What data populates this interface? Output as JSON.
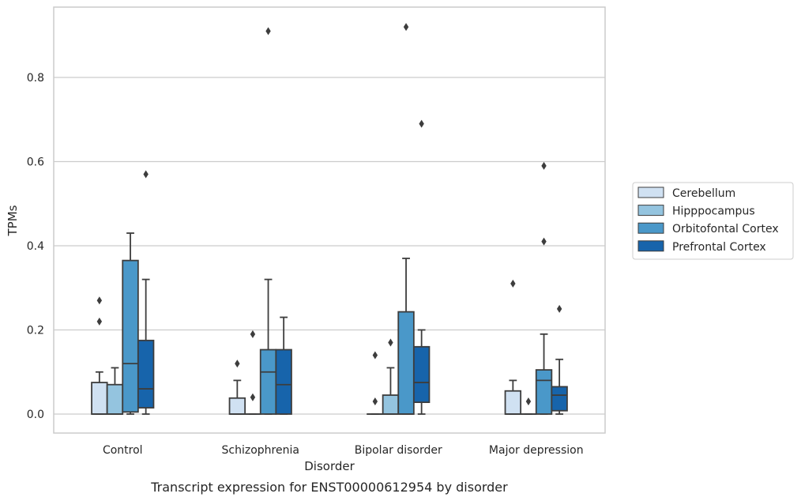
{
  "chart_data": {
    "type": "box",
    "caption": "Transcript expression for ENST00000612954 by disorder",
    "xlabel": "Disorder",
    "ylabel": "TPMs",
    "ylim": [
      -0.045,
      0.97
    ],
    "yticks": [
      0.0,
      0.2,
      0.4,
      0.6,
      0.8
    ],
    "ytick_labels": [
      "0.0",
      "0.2",
      "0.4",
      "0.6",
      "0.8"
    ],
    "grid": "horizontal",
    "legend_position": "right",
    "categories": [
      "Control",
      "Schizophrenia",
      "Bipolar disorder",
      "Major depression"
    ],
    "series": [
      {
        "name": "Cerebellum",
        "color": "#d0e1f2",
        "boxes": [
          {
            "whislo": 0.0,
            "q1": 0.0,
            "med": 0.0,
            "q3": 0.075,
            "whishi": 0.1,
            "fliers": [
              0.22,
              0.27
            ]
          },
          {
            "whislo": 0.0,
            "q1": 0.0,
            "med": 0.0,
            "q3": 0.038,
            "whishi": 0.08,
            "fliers": [
              0.12
            ]
          },
          {
            "whislo": 0.0,
            "q1": 0.0,
            "med": 0.0,
            "q3": 0.0,
            "whishi": 0.0,
            "fliers": []
          },
          {
            "whislo": 0.0,
            "q1": 0.0,
            "med": 0.0,
            "q3": 0.055,
            "whishi": 0.08,
            "fliers": [
              0.31
            ]
          }
        ]
      },
      {
        "name": "Hipppocampus",
        "color": "#94c4df",
        "boxes": [
          {
            "whislo": 0.0,
            "q1": 0.0,
            "med": 0.0,
            "q3": 0.07,
            "whishi": 0.11,
            "fliers": []
          },
          {
            "whislo": 0.0,
            "q1": 0.0,
            "med": 0.0,
            "q3": 0.0,
            "whishi": 0.0,
            "fliers": [
              0.04,
              0.19
            ]
          },
          {
            "whislo": 0.0,
            "q1": 0.0,
            "med": 0.0,
            "q3": 0.045,
            "whishi": 0.11,
            "fliers": [
              0.17
            ]
          },
          {
            "whislo": 0.0,
            "q1": 0.0,
            "med": 0.0,
            "q3": 0.0,
            "whishi": 0.0,
            "fliers": [
              0.03
            ]
          }
        ]
      },
      {
        "name": "Orbitofontal Cortex",
        "color": "#4a98c9",
        "boxes": [
          {
            "whislo": 0.0,
            "q1": 0.005,
            "med": 0.12,
            "q3": 0.365,
            "whishi": 0.43,
            "fliers": []
          },
          {
            "whislo": 0.0,
            "q1": 0.0,
            "med": 0.1,
            "q3": 0.153,
            "whishi": 0.32,
            "fliers": [
              0.91
            ]
          },
          {
            "whislo": 0.0,
            "q1": 0.0,
            "med": 0.0,
            "q3": 0.243,
            "whishi": 0.37,
            "fliers": [
              0.92
            ]
          },
          {
            "whislo": 0.0,
            "q1": 0.0,
            "med": 0.08,
            "q3": 0.105,
            "whishi": 0.19,
            "fliers": [
              0.41,
              0.59
            ]
          }
        ]
      },
      {
        "name": "Prefrontal Cortex",
        "color": "#1764ab",
        "boxes": [
          {
            "whislo": 0.0,
            "q1": 0.015,
            "med": 0.06,
            "q3": 0.175,
            "whishi": 0.32,
            "fliers": [
              0.57
            ]
          },
          {
            "whislo": 0.0,
            "q1": 0.0,
            "med": 0.07,
            "q3": 0.153,
            "whishi": 0.23,
            "fliers": []
          },
          {
            "whislo": 0.0,
            "q1": 0.028,
            "med": 0.075,
            "q3": 0.16,
            "whishi": 0.2,
            "fliers": [
              0.69
            ]
          },
          {
            "whislo": 0.0,
            "q1": 0.008,
            "med": 0.045,
            "q3": 0.065,
            "whishi": 0.13,
            "fliers": [
              0.25
            ]
          }
        ]
      }
    ],
    "extra_points": [
      {
        "category": "Bipolar disorder",
        "series": "Cerebellum",
        "value": 0.14
      },
      {
        "category": "Bipolar disorder",
        "series": "Cerebellum",
        "value": 0.03
      }
    ]
  }
}
